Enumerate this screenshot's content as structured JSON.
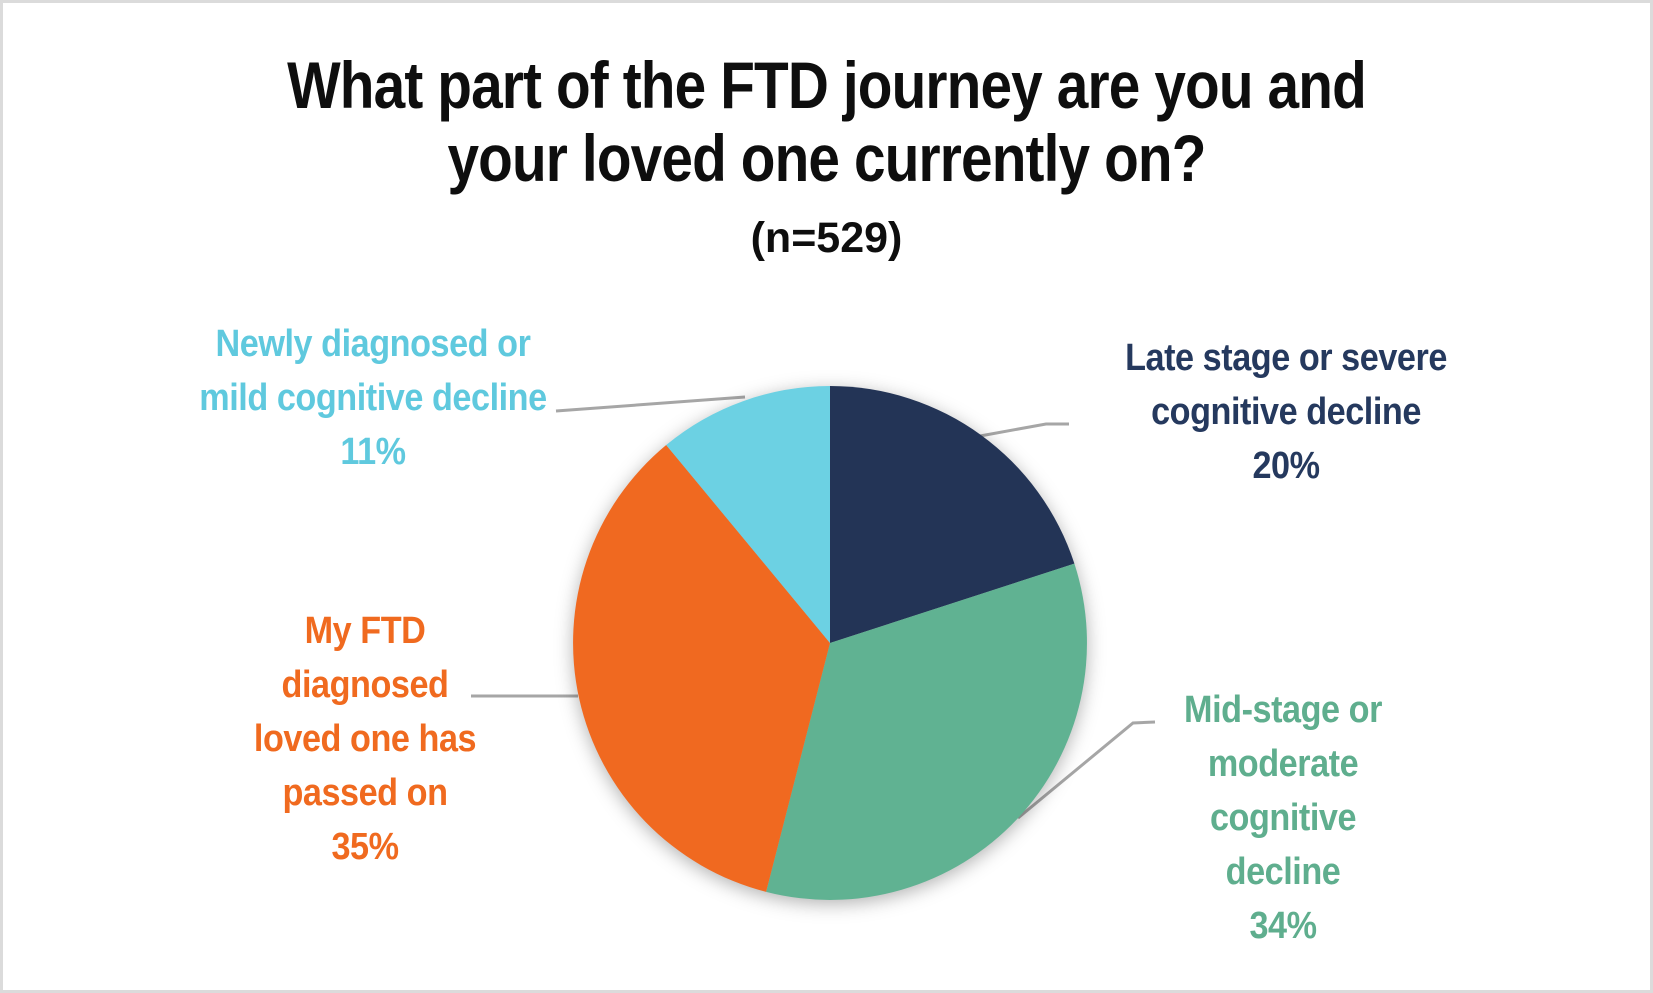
{
  "window": {
    "background": "#ffffff",
    "border_color": "#dbdbdb"
  },
  "title": {
    "line1": "What part of the FTD journey are you and",
    "line2": "your loved one currently on?",
    "sample": "(n=529)"
  },
  "chart_data": {
    "type": "pie",
    "title": "What part of the FTD journey are you and your loved one currently on?",
    "subtitle": "(n=529)",
    "n": 529,
    "start_angle": "12 o'clock",
    "direction": "clockwise",
    "legend_position": "outside callout labels with gray leader lines",
    "leader_line_color": "#a6a6a6",
    "slices": [
      {
        "id": "late-stage",
        "label": "Late stage or severe cognitive decline",
        "value_pct": 20,
        "color": "#233456"
      },
      {
        "id": "mid-stage",
        "label": "Mid-stage or moderate cognitive decline",
        "value_pct": 34,
        "color": "#60b292"
      },
      {
        "id": "passed-on",
        "label": "My FTD diagnosed loved one has passed on",
        "value_pct": 35,
        "color": "#f06920"
      },
      {
        "id": "newly-diagnosed",
        "label": "Newly diagnosed or mild cognitive decline",
        "value_pct": 11,
        "color": "#6cd1e3"
      }
    ]
  },
  "callouts": {
    "newly": {
      "text": "Newly diagnosed or\nmild cognitive decline\n11%",
      "color": "#5fc9de"
    },
    "late": {
      "text": "Late stage or severe\ncognitive decline\n20%",
      "color": "#25395e"
    },
    "passed": {
      "text": "My FTD\ndiagnosed\nloved one has\npassed on\n35%",
      "color": "#f06a1f"
    },
    "mid": {
      "text": "Mid-stage or\nmoderate\ncognitive\ndecline\n34%",
      "color": "#5fae8e"
    }
  }
}
